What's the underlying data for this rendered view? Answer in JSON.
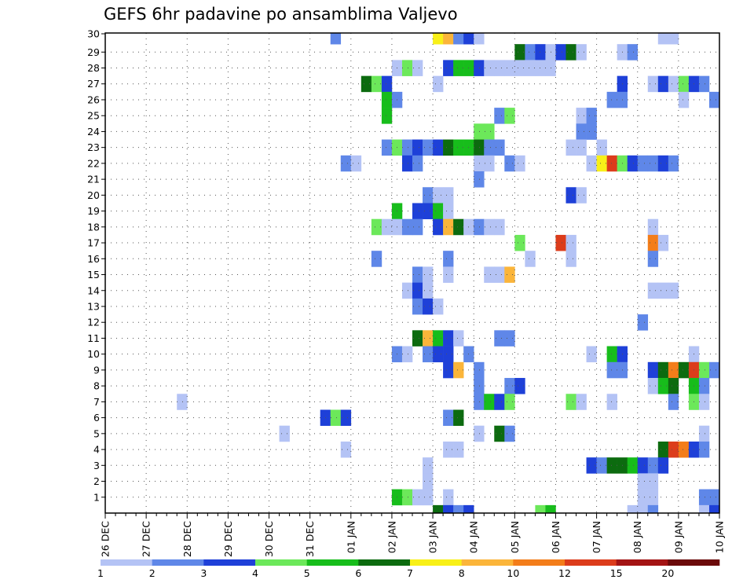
{
  "chart_data": {
    "type": "heatmap",
    "title": "GEFS 6hr padavine po ansamblima Valjevo",
    "xlabel": "",
    "ylabel": "",
    "x_ticks": [
      "26 DEC",
      "27 DEC",
      "28 DEC",
      "29 DEC",
      "30 DEC",
      "31 DEC",
      "01 JAN",
      "02 JAN",
      "03 JAN",
      "04 JAN",
      "05 JAN",
      "06 JAN",
      "07 JAN",
      "08 JAN",
      "09 JAN",
      "10 JAN"
    ],
    "x_time_steps": 60,
    "steps_per_day": 4,
    "y_ticks": [
      1,
      2,
      3,
      4,
      5,
      6,
      7,
      8,
      9,
      10,
      11,
      12,
      13,
      14,
      15,
      16,
      17,
      18,
      19,
      20,
      21,
      22,
      23,
      24,
      25,
      26,
      27,
      28,
      29,
      30
    ],
    "y_range": [
      0,
      30
    ],
    "grid": true,
    "legend": {
      "placement": "bottom",
      "labels": [
        "1",
        "2",
        "3",
        "4",
        "5",
        "6",
        "7",
        "8",
        "10",
        "12",
        "15",
        "20"
      ],
      "bins": [
        {
          "min": 1,
          "color": "#b4c3f5"
        },
        {
          "min": 2,
          "color": "#5f87e8"
        },
        {
          "min": 3,
          "color": "#1e40d8"
        },
        {
          "min": 4,
          "color": "#6ce85a"
        },
        {
          "min": 5,
          "color": "#17bd1b"
        },
        {
          "min": 6,
          "color": "#0c6b0f"
        },
        {
          "min": 7,
          "color": "#f8f018"
        },
        {
          "min": 8,
          "color": "#fbb53a"
        },
        {
          "min": 10,
          "color": "#f37d1a"
        },
        {
          "min": 12,
          "color": "#dc3c1b"
        },
        {
          "min": 15,
          "color": "#a31414"
        },
        {
          "min": 20,
          "color": "#6b0a0a"
        }
      ]
    },
    "series": [
      {
        "member": 30,
        "cells": [
          [
            22,
            2
          ],
          [
            32,
            7
          ],
          [
            33,
            8
          ],
          [
            34,
            2
          ],
          [
            35,
            3
          ],
          [
            36,
            1
          ],
          [
            54,
            1
          ],
          [
            55,
            1
          ]
        ]
      },
      {
        "member": 29,
        "cells": [
          [
            40,
            6
          ],
          [
            41,
            2
          ],
          [
            42,
            3
          ],
          [
            43,
            1
          ],
          [
            44,
            3
          ],
          [
            45,
            6
          ],
          [
            46,
            1
          ],
          [
            50,
            1
          ],
          [
            51,
            2
          ]
        ]
      },
      {
        "member": 28,
        "cells": [
          [
            28,
            1
          ],
          [
            29,
            4
          ],
          [
            30,
            1
          ],
          [
            33,
            3
          ],
          [
            34,
            5
          ],
          [
            35,
            5
          ],
          [
            36,
            3
          ],
          [
            37,
            1
          ],
          [
            38,
            1
          ],
          [
            39,
            1
          ],
          [
            40,
            1
          ],
          [
            41,
            1
          ],
          [
            42,
            1
          ],
          [
            43,
            1
          ]
        ]
      },
      {
        "member": 27,
        "cells": [
          [
            25,
            6
          ],
          [
            26,
            4
          ],
          [
            27,
            3
          ],
          [
            32,
            1
          ],
          [
            50,
            3
          ],
          [
            53,
            1
          ],
          [
            54,
            3
          ],
          [
            55,
            1
          ],
          [
            56,
            4
          ],
          [
            57,
            3
          ],
          [
            58,
            2
          ]
        ]
      },
      {
        "member": 26,
        "cells": [
          [
            27,
            5
          ],
          [
            28,
            2
          ],
          [
            49,
            2
          ],
          [
            50,
            2
          ],
          [
            56,
            1
          ],
          [
            59,
            2
          ]
        ]
      },
      {
        "member": 25,
        "cells": [
          [
            27,
            5
          ],
          [
            38,
            2
          ],
          [
            39,
            4
          ],
          [
            46,
            1
          ],
          [
            47,
            2
          ]
        ]
      },
      {
        "member": 24,
        "cells": [
          [
            36,
            4
          ],
          [
            37,
            4
          ],
          [
            46,
            2
          ],
          [
            47,
            2
          ]
        ]
      },
      {
        "member": 23,
        "cells": [
          [
            27,
            2
          ],
          [
            28,
            4
          ],
          [
            29,
            2
          ],
          [
            30,
            3
          ],
          [
            31,
            2
          ],
          [
            32,
            3
          ],
          [
            33,
            6
          ],
          [
            34,
            5
          ],
          [
            35,
            5
          ],
          [
            36,
            6
          ],
          [
            37,
            2
          ],
          [
            38,
            2
          ],
          [
            45,
            1
          ],
          [
            46,
            1
          ],
          [
            48,
            1
          ]
        ]
      },
      {
        "member": 22,
        "cells": [
          [
            23,
            2
          ],
          [
            24,
            1
          ],
          [
            29,
            3
          ],
          [
            30,
            2
          ],
          [
            36,
            1
          ],
          [
            37,
            1
          ],
          [
            39,
            2
          ],
          [
            40,
            1
          ],
          [
            47,
            1
          ],
          [
            48,
            7
          ],
          [
            49,
            12
          ],
          [
            50,
            4
          ],
          [
            51,
            3
          ],
          [
            52,
            2
          ],
          [
            53,
            2
          ],
          [
            54,
            3
          ],
          [
            55,
            2
          ]
        ]
      },
      {
        "member": 21,
        "cells": [
          [
            36,
            2
          ]
        ]
      },
      {
        "member": 20,
        "cells": [
          [
            31,
            2
          ],
          [
            32,
            1
          ],
          [
            33,
            1
          ],
          [
            45,
            3
          ],
          [
            46,
            1
          ]
        ]
      },
      {
        "member": 19,
        "cells": [
          [
            28,
            5
          ],
          [
            30,
            3
          ],
          [
            31,
            3
          ],
          [
            32,
            5
          ],
          [
            33,
            1
          ]
        ]
      },
      {
        "member": 18,
        "cells": [
          [
            26,
            4
          ],
          [
            27,
            1
          ],
          [
            28,
            1
          ],
          [
            29,
            2
          ],
          [
            30,
            2
          ],
          [
            32,
            3
          ],
          [
            33,
            8
          ],
          [
            34,
            6
          ],
          [
            35,
            1
          ],
          [
            36,
            2
          ],
          [
            37,
            1
          ],
          [
            38,
            1
          ],
          [
            53,
            1
          ]
        ]
      },
      {
        "member": 17,
        "cells": [
          [
            40,
            4
          ],
          [
            44,
            12
          ],
          [
            45,
            1
          ],
          [
            53,
            10
          ],
          [
            54,
            1
          ]
        ]
      },
      {
        "member": 16,
        "cells": [
          [
            26,
            2
          ],
          [
            33,
            2
          ],
          [
            41,
            1
          ],
          [
            45,
            1
          ],
          [
            53,
            2
          ]
        ]
      },
      {
        "member": 15,
        "cells": [
          [
            30,
            2
          ],
          [
            31,
            1
          ],
          [
            33,
            1
          ],
          [
            37,
            1
          ],
          [
            38,
            1
          ],
          [
            39,
            8
          ]
        ]
      },
      {
        "member": 14,
        "cells": [
          [
            29,
            1
          ],
          [
            30,
            3
          ],
          [
            31,
            1
          ],
          [
            53,
            1
          ],
          [
            54,
            1
          ],
          [
            55,
            1
          ]
        ]
      },
      {
        "member": 13,
        "cells": [
          [
            30,
            2
          ],
          [
            31,
            3
          ],
          [
            32,
            1
          ]
        ]
      },
      {
        "member": 12,
        "cells": [
          [
            52,
            2
          ]
        ]
      },
      {
        "member": 11,
        "cells": [
          [
            30,
            6
          ],
          [
            31,
            8
          ],
          [
            32,
            5
          ],
          [
            33,
            3
          ],
          [
            34,
            1
          ],
          [
            38,
            2
          ],
          [
            39,
            2
          ]
        ]
      },
      {
        "member": 10,
        "cells": [
          [
            28,
            2
          ],
          [
            29,
            1
          ],
          [
            31,
            2
          ],
          [
            32,
            3
          ],
          [
            33,
            3
          ],
          [
            35,
            2
          ],
          [
            47,
            1
          ],
          [
            49,
            5
          ],
          [
            50,
            3
          ],
          [
            57,
            1
          ]
        ]
      },
      {
        "member": 9,
        "cells": [
          [
            33,
            3
          ],
          [
            34,
            8
          ],
          [
            36,
            2
          ],
          [
            49,
            2
          ],
          [
            50,
            2
          ],
          [
            53,
            3
          ],
          [
            54,
            6
          ],
          [
            55,
            10
          ],
          [
            56,
            6
          ],
          [
            57,
            12
          ],
          [
            58,
            4
          ],
          [
            59,
            2
          ]
        ]
      },
      {
        "member": 8,
        "cells": [
          [
            36,
            2
          ],
          [
            39,
            2
          ],
          [
            40,
            3
          ],
          [
            53,
            1
          ],
          [
            54,
            5
          ],
          [
            55,
            6
          ],
          [
            57,
            5
          ],
          [
            58,
            2
          ]
        ]
      },
      {
        "member": 7,
        "cells": [
          [
            7,
            1
          ],
          [
            36,
            2
          ],
          [
            37,
            5
          ],
          [
            38,
            3
          ],
          [
            39,
            4
          ],
          [
            45,
            4
          ],
          [
            46,
            1
          ],
          [
            49,
            1
          ],
          [
            55,
            2
          ],
          [
            57,
            4
          ],
          [
            58,
            1
          ]
        ]
      },
      {
        "member": 6,
        "cells": [
          [
            21,
            3
          ],
          [
            22,
            4
          ],
          [
            23,
            3
          ],
          [
            33,
            2
          ],
          [
            34,
            6
          ]
        ]
      },
      {
        "member": 5,
        "cells": [
          [
            17,
            1
          ],
          [
            36,
            1
          ],
          [
            38,
            6
          ],
          [
            39,
            2
          ],
          [
            58,
            1
          ]
        ]
      },
      {
        "member": 4,
        "cells": [
          [
            23,
            1
          ],
          [
            33,
            1
          ],
          [
            34,
            1
          ],
          [
            54,
            6
          ],
          [
            55,
            12
          ],
          [
            56,
            10
          ],
          [
            57,
            3
          ],
          [
            58,
            2
          ]
        ]
      },
      {
        "member": 3,
        "cells": [
          [
            31,
            1
          ],
          [
            47,
            3
          ],
          [
            48,
            2
          ],
          [
            49,
            6
          ],
          [
            50,
            6
          ],
          [
            51,
            5
          ],
          [
            52,
            3
          ],
          [
            53,
            2
          ],
          [
            54,
            3
          ]
        ]
      },
      {
        "member": 2,
        "cells": [
          [
            31,
            1
          ],
          [
            52,
            1
          ],
          [
            53,
            1
          ]
        ]
      },
      {
        "member": 1,
        "cells": [
          [
            28,
            5
          ],
          [
            29,
            4
          ],
          [
            30,
            1
          ],
          [
            31,
            1
          ],
          [
            33,
            1
          ],
          [
            52,
            1
          ],
          [
            53,
            1
          ],
          [
            58,
            2
          ],
          [
            59,
            2
          ]
        ]
      },
      {
        "member": 0,
        "cells": [
          [
            32,
            6
          ],
          [
            33,
            3
          ],
          [
            34,
            2
          ],
          [
            35,
            3
          ],
          [
            42,
            4
          ],
          [
            43,
            5
          ],
          [
            51,
            1
          ],
          [
            52,
            1
          ],
          [
            53,
            2
          ],
          [
            58,
            1
          ],
          [
            59,
            3
          ]
        ]
      }
    ]
  }
}
